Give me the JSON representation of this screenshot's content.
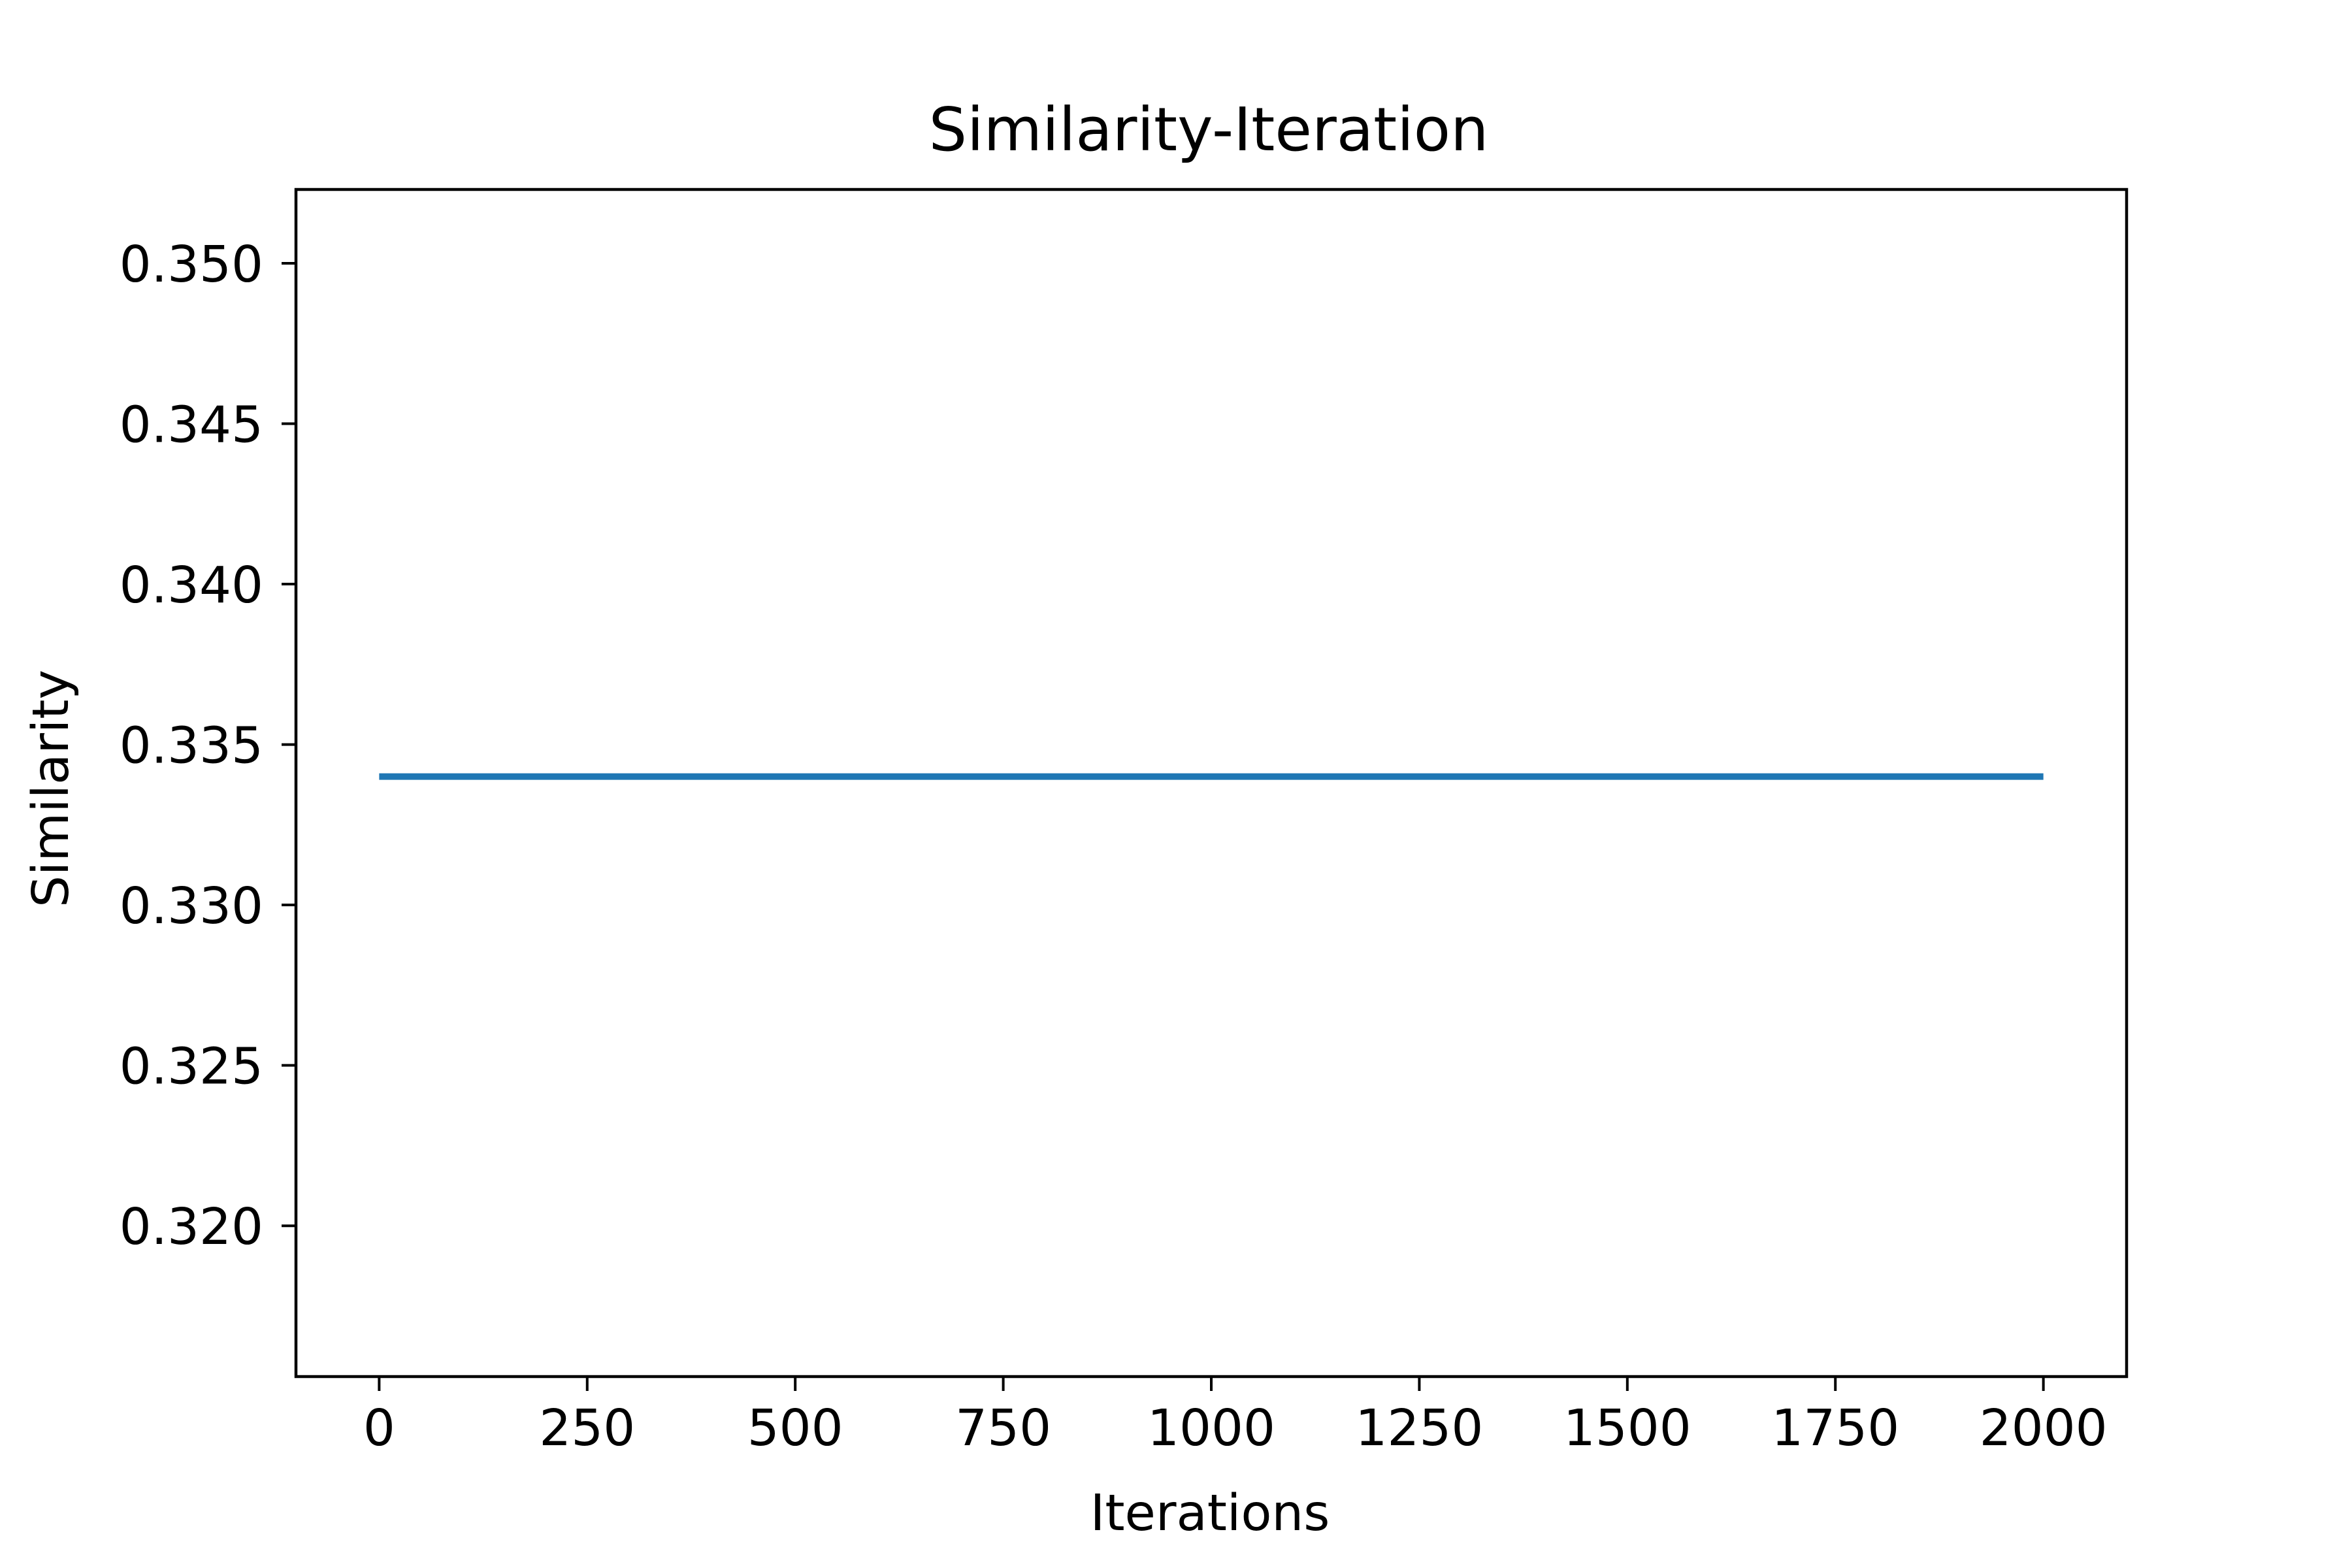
{
  "chart_data": {
    "type": "line",
    "title": "Similarity-Iteration",
    "xlabel": "Iterations",
    "ylabel": "Similarity",
    "xlim": [
      -100,
      2100
    ],
    "ylim": [
      0.3153,
      0.3523
    ],
    "x_ticks": [
      0,
      250,
      500,
      750,
      1000,
      1250,
      1500,
      1750,
      2000
    ],
    "x_tick_labels": [
      "0",
      "250",
      "500",
      "750",
      "1000",
      "1250",
      "1500",
      "1750",
      "2000"
    ],
    "y_ticks": [
      0.32,
      0.325,
      0.33,
      0.335,
      0.34,
      0.345,
      0.35
    ],
    "y_tick_labels": [
      "0.320",
      "0.325",
      "0.330",
      "0.335",
      "0.340",
      "0.345",
      "0.350"
    ],
    "grid": false,
    "legend": "none",
    "series": [
      {
        "color": "#1f77b4",
        "x": [
          0,
          2000
        ],
        "y": [
          0.334,
          0.334
        ]
      }
    ]
  }
}
